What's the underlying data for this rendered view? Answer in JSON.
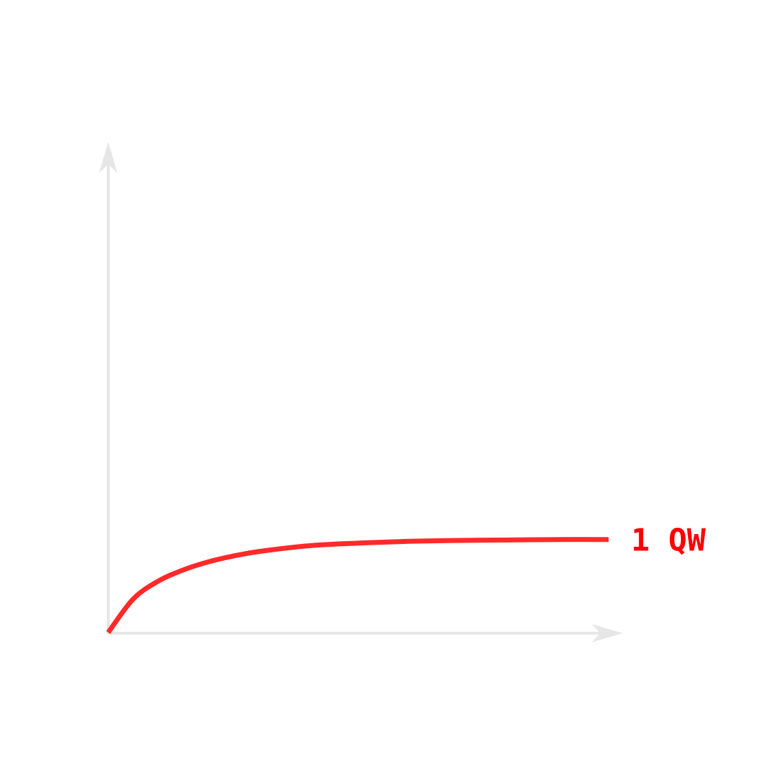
{
  "chart_data": {
    "type": "line",
    "title": "",
    "xlabel": "",
    "ylabel": "",
    "grid": false,
    "legend": "none",
    "xlim": [
      0,
      1
    ],
    "ylim": [
      0,
      1
    ],
    "axis_color": "#e6e6e6",
    "series": [
      {
        "name": "1 QW",
        "color": "#ff2a2a",
        "label_color": "#ff0000",
        "x": [
          0,
          0.05,
          0.1,
          0.15,
          0.2,
          0.25,
          0.3,
          0.4,
          0.5,
          0.6,
          0.7,
          0.8,
          0.9,
          1.0
        ],
        "y": [
          0,
          0.075,
          0.115,
          0.14,
          0.158,
          0.171,
          0.181,
          0.194,
          0.2,
          0.204,
          0.206,
          0.207,
          0.208,
          0.208
        ]
      }
    ]
  }
}
